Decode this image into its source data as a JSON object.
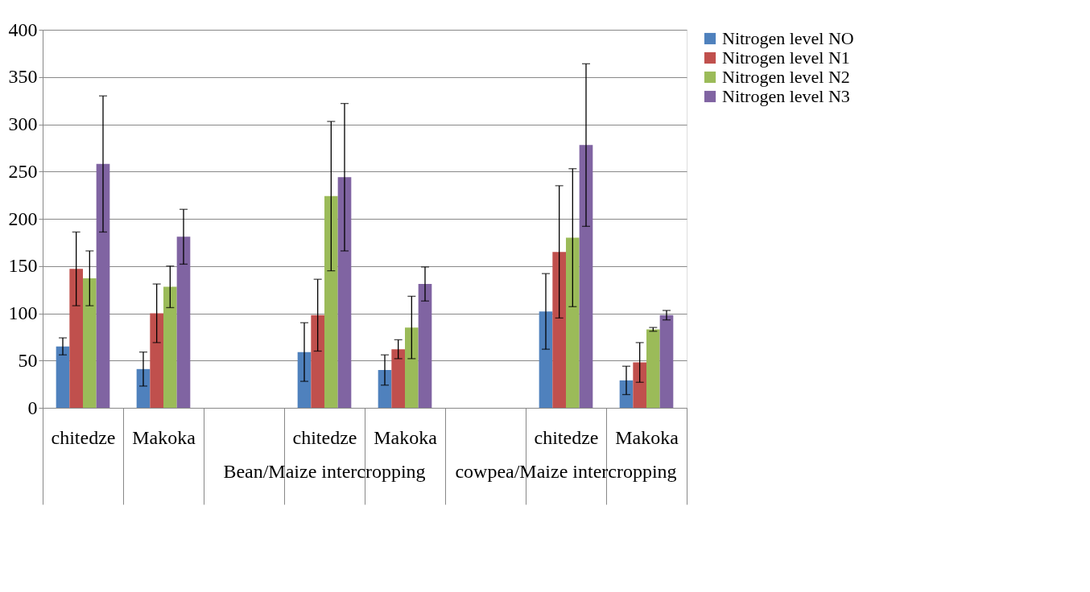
{
  "chart_data": {
    "type": "bar",
    "categories": [
      "chitedze",
      "Makoka",
      null,
      "chitedze",
      "Makoka",
      null,
      "chitedze",
      "Makoka"
    ],
    "annotations": [
      "Bean/Maize intercropping",
      "cowpea/Maize intercropping"
    ],
    "series": [
      {
        "name": "Nitrogen level NO",
        "color": "#4f81bd",
        "values": [
          65,
          41,
          null,
          59,
          40,
          null,
          102,
          29
        ],
        "errors": [
          9,
          18,
          null,
          31,
          16,
          null,
          40,
          15
        ]
      },
      {
        "name": "Nitrogen level N1",
        "color": "#c0504d",
        "values": [
          147,
          100,
          null,
          98,
          62,
          null,
          165,
          48
        ],
        "errors": [
          39,
          31,
          null,
          38,
          10,
          null,
          70,
          21
        ]
      },
      {
        "name": "Nitrogen level N2",
        "color": "#9bbb59",
        "values": [
          137,
          128,
          null,
          224,
          85,
          null,
          180,
          83
        ],
        "errors": [
          29,
          22,
          null,
          79,
          33,
          null,
          73,
          2
        ]
      },
      {
        "name": "Nitrogen level N3",
        "color": "#8064a2",
        "values": [
          258,
          181,
          null,
          244,
          131,
          null,
          278,
          98
        ],
        "errors": [
          72,
          29,
          null,
          78,
          18,
          null,
          86,
          5
        ]
      }
    ],
    "ylim": [
      0,
      400
    ],
    "yticks": [
      0,
      50,
      100,
      150,
      200,
      250,
      300,
      350,
      400
    ],
    "grid": "y",
    "legend": "right"
  }
}
